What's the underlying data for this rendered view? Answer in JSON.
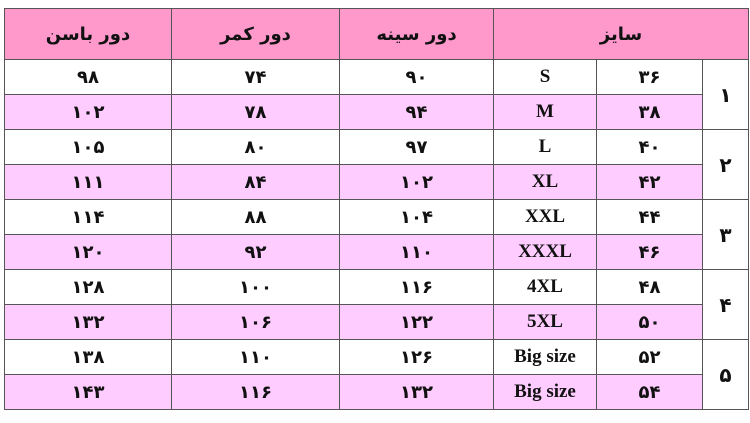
{
  "headers": {
    "size": "سایز",
    "chest": "دور سینه",
    "waist": "دور کمر",
    "hip": "دور باسن"
  },
  "colors": {
    "header_bg": "#ff99cc",
    "alt_row_bg": "#ffccff",
    "row_bg": "#ffffff"
  },
  "groups": [
    "۱",
    "۲",
    "۳",
    "۴",
    "۵"
  ],
  "rows": [
    {
      "num": "۳۶",
      "label": "S",
      "chest": "۹۰",
      "waist": "۷۴",
      "hip": "۹۸"
    },
    {
      "num": "۳۸",
      "label": "M",
      "chest": "۹۴",
      "waist": "۷۸",
      "hip": "۱۰۲"
    },
    {
      "num": "۴۰",
      "label": "L",
      "chest": "۹۷",
      "waist": "۸۰",
      "hip": "۱۰۵"
    },
    {
      "num": "۴۲",
      "label": "XL",
      "chest": "۱۰۲",
      "waist": "۸۴",
      "hip": "۱۱۱"
    },
    {
      "num": "۴۴",
      "label": "XXL",
      "chest": "۱۰۴",
      "waist": "۸۸",
      "hip": "۱۱۴"
    },
    {
      "num": "۴۶",
      "label": "XXXL",
      "chest": "۱۱۰",
      "waist": "۹۲",
      "hip": "۱۲۰"
    },
    {
      "num": "۴۸",
      "label": "4XL",
      "chest": "۱۱۶",
      "waist": "۱۰۰",
      "hip": "۱۲۸"
    },
    {
      "num": "۵۰",
      "label": "5XL",
      "chest": "۱۲۲",
      "waist": "۱۰۶",
      "hip": "۱۳۲"
    },
    {
      "num": "۵۲",
      "label": "Big size",
      "chest": "۱۲۶",
      "waist": "۱۱۰",
      "hip": "۱۳۸"
    },
    {
      "num": "۵۴",
      "label": "Big size",
      "chest": "۱۳۲",
      "waist": "۱۱۶",
      "hip": "۱۴۳"
    }
  ]
}
